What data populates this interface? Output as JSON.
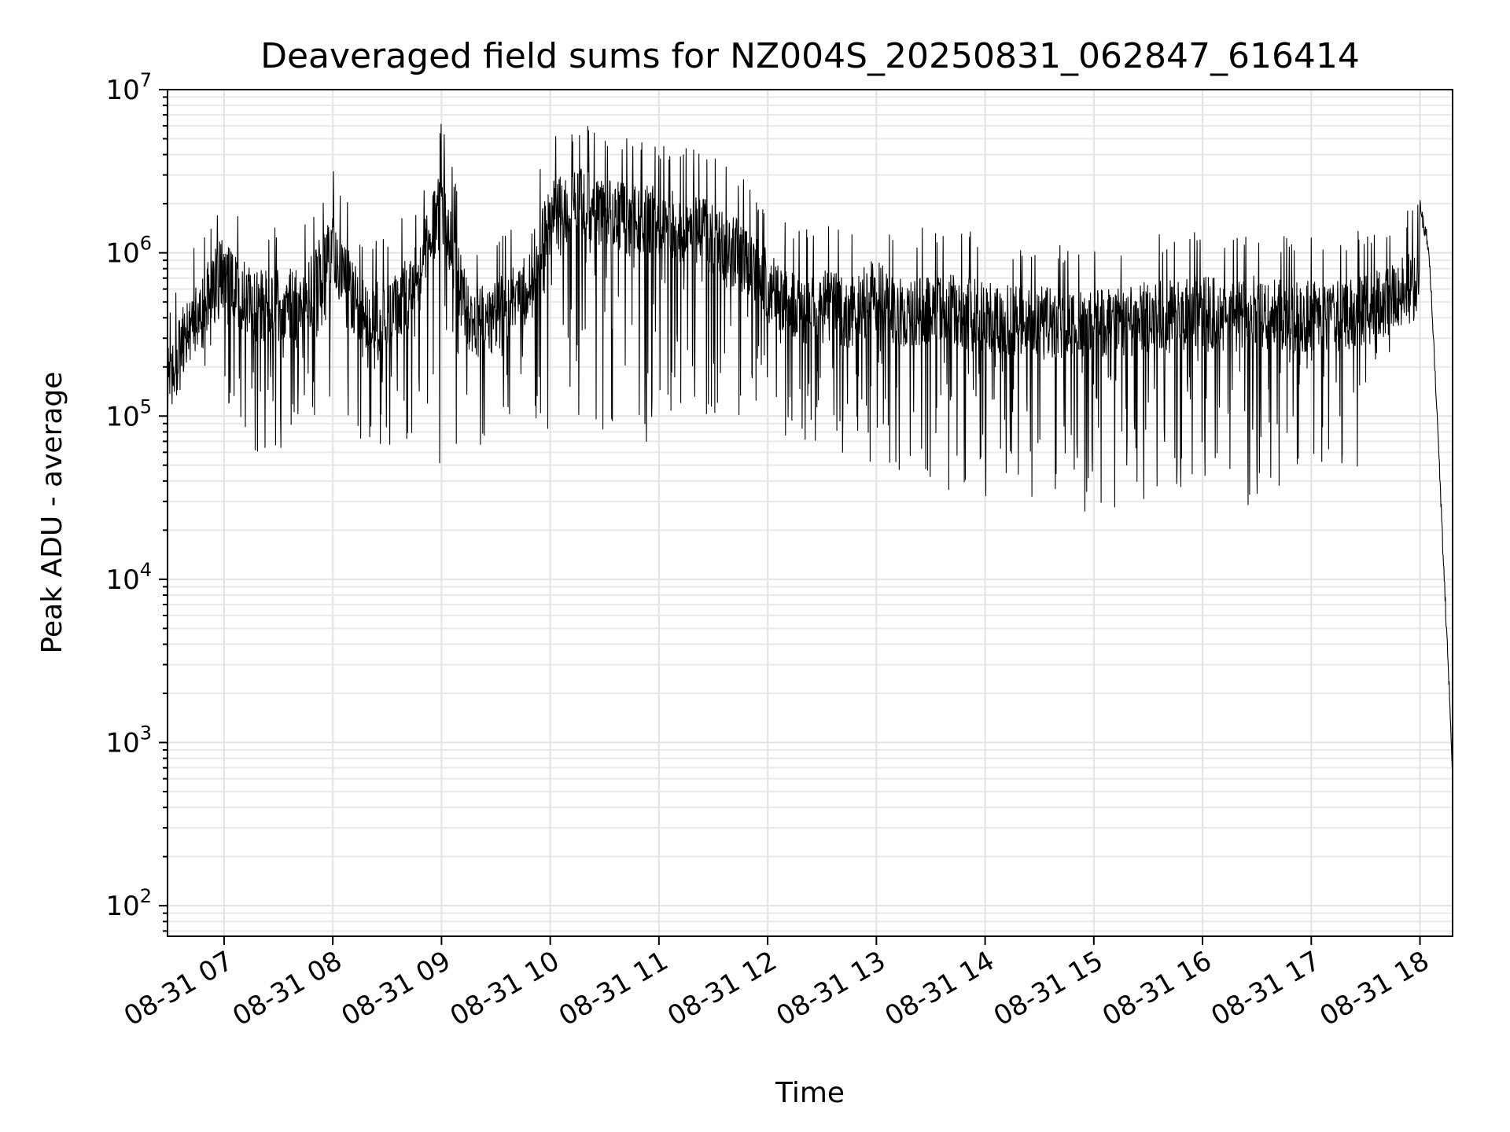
{
  "chart_data": {
    "type": "line",
    "title": "Deaveraged field sums for NZ004S_20250831_062847_616414",
    "xlabel": "Time",
    "ylabel": "Peak ADU - average",
    "yscale": "log",
    "ylim": [
      65,
      10000000
    ],
    "xlim": [
      "2025-08-31 06:28:47",
      "2025-08-31 18:18:00"
    ],
    "grid": true,
    "x_ticks": [
      "08-31 07",
      "08-31 08",
      "08-31 09",
      "08-31 10",
      "08-31 11",
      "08-31 12",
      "08-31 13",
      "08-31 14",
      "08-31 15",
      "08-31 16",
      "08-31 17",
      "08-31 18"
    ],
    "x_tick_times": [
      "2025-08-31 07:00",
      "2025-08-31 08:00",
      "2025-08-31 09:00",
      "2025-08-31 10:00",
      "2025-08-31 11:00",
      "2025-08-31 12:00",
      "2025-08-31 13:00",
      "2025-08-31 14:00",
      "2025-08-31 15:00",
      "2025-08-31 16:00",
      "2025-08-31 17:00",
      "2025-08-31 18:00"
    ],
    "y_ticks": [
      {
        "base": "10",
        "exp": "2",
        "value": 100
      },
      {
        "base": "10",
        "exp": "3",
        "value": 1000
      },
      {
        "base": "10",
        "exp": "4",
        "value": 10000
      },
      {
        "base": "10",
        "exp": "5",
        "value": 100000
      },
      {
        "base": "10",
        "exp": "6",
        "value": 1000000
      },
      {
        "base": "10",
        "exp": "7",
        "value": 10000000
      }
    ],
    "series": [
      {
        "color": "#000000",
        "x": [
          "2025-08-31 06:28:47",
          "2025-08-31 06:40",
          "2025-08-31 06:50",
          "2025-08-31 07:00",
          "2025-08-31 07:15",
          "2025-08-31 07:30",
          "2025-08-31 07:45",
          "2025-08-31 08:00",
          "2025-08-31 08:15",
          "2025-08-31 08:30",
          "2025-08-31 08:45",
          "2025-08-31 09:00",
          "2025-08-31 09:15",
          "2025-08-31 09:30",
          "2025-08-31 09:45",
          "2025-08-31 10:00",
          "2025-08-31 10:15",
          "2025-08-31 10:30",
          "2025-08-31 10:45",
          "2025-08-31 11:00",
          "2025-08-31 11:15",
          "2025-08-31 11:30",
          "2025-08-31 11:45",
          "2025-08-31 12:00",
          "2025-08-31 12:15",
          "2025-08-31 12:30",
          "2025-08-31 12:45",
          "2025-08-31 13:00",
          "2025-08-31 13:15",
          "2025-08-31 13:30",
          "2025-08-31 13:45",
          "2025-08-31 14:00",
          "2025-08-31 14:15",
          "2025-08-31 14:30",
          "2025-08-31 14:45",
          "2025-08-31 15:00",
          "2025-08-31 15:15",
          "2025-08-31 15:30",
          "2025-08-31 15:45",
          "2025-08-31 16:00",
          "2025-08-31 16:15",
          "2025-08-31 16:30",
          "2025-08-31 16:45",
          "2025-08-31 17:00",
          "2025-08-31 17:15",
          "2025-08-31 17:30",
          "2025-08-31 17:45",
          "2025-08-31 18:00",
          "2025-08-31 18:05",
          "2025-08-31 18:10",
          "2025-08-31 18:13",
          "2025-08-31 18:16",
          "2025-08-31 18:18"
        ],
        "hi": [
          500000,
          1000000,
          1600000,
          2500000,
          1500000,
          1500000,
          1600000,
          3400000,
          1400000,
          1300000,
          2000000,
          6500000,
          1200000,
          1300000,
          1800000,
          5200000,
          6500000,
          5500000,
          5000000,
          5000000,
          4500000,
          4000000,
          3000000,
          2000000,
          1500000,
          1500000,
          1400000,
          1800000,
          1300000,
          1500000,
          1400000,
          1300000,
          1200000,
          1200000,
          1100000,
          1200000,
          1200000,
          1300000,
          1300000,
          1400000,
          1300000,
          1400000,
          1300000,
          1300000,
          1300000,
          1400000,
          1600000,
          2200000,
          1200000,
          80000,
          14000,
          2600,
          600
        ],
        "lo": [
          380000,
          600000,
          160000,
          120000,
          60000,
          60000,
          90000,
          100000,
          65000,
          60000,
          70000,
          45000,
          55000,
          70000,
          80000,
          70000,
          60000,
          65000,
          80000,
          60000,
          70000,
          90000,
          100000,
          50000,
          60000,
          70000,
          50000,
          45000,
          40000,
          35000,
          30000,
          32000,
          30000,
          30000,
          28000,
          17000,
          25000,
          22000,
          30000,
          40000,
          35000,
          25000,
          30000,
          32000,
          40000,
          50000,
          300000,
          1000000,
          600000,
          60000,
          6000,
          1500,
          600
        ]
      }
    ]
  }
}
